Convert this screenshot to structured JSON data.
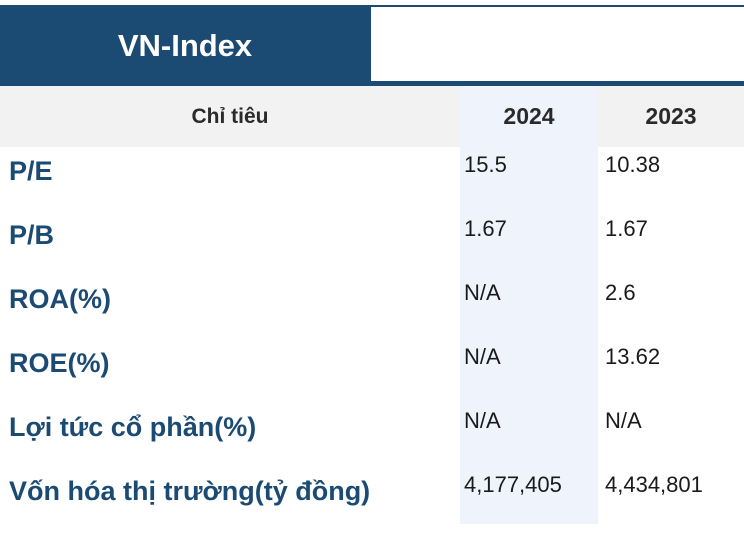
{
  "header": {
    "title": "VN-Index"
  },
  "table": {
    "columns": [
      "Chỉ tiêu",
      "2024",
      "2023"
    ],
    "rows": [
      {
        "label": "P/E",
        "y2024": "15.5",
        "y2023": "10.38"
      },
      {
        "label": "P/B",
        "y2024": "1.67",
        "y2023": "1.67"
      },
      {
        "label": "ROA(%)",
        "y2024": "N/A",
        "y2023": "2.6"
      },
      {
        "label": "ROE(%)",
        "y2024": "N/A",
        "y2023": "13.62"
      },
      {
        "label": "Lợi tức cổ phần(%)",
        "y2024": "N/A",
        "y2023": "N/A"
      },
      {
        "label": "Vốn hóa thị trường(tỷ đồng)",
        "y2024": "4,177,405",
        "y2023": "4,434,801"
      }
    ]
  },
  "colors": {
    "header_bg": "#1b4a73",
    "label_text": "#1b4a73",
    "highlight_column": "#eef3fc",
    "thead_bg": "#f2f2f2"
  }
}
